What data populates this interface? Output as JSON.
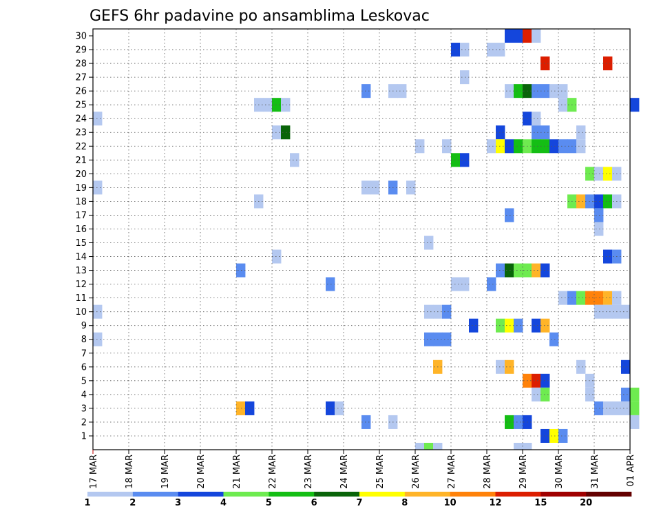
{
  "chart_data": {
    "type": "heatmap",
    "title": "GEFS 6hr padavine po ansamblima Leskovac",
    "x_tick_labels": [
      "17 MAR",
      "18 MAR",
      "19 MAR",
      "20 MAR",
      "21 MAR",
      "22 MAR",
      "23 MAR",
      "24 MAR",
      "25 MAR",
      "26 MAR",
      "27 MAR",
      "28 MAR",
      "29 MAR",
      "30 MAR",
      "31 MAR",
      "01 APR"
    ],
    "y_tick_labels": [
      "1",
      "2",
      "3",
      "4",
      "5",
      "6",
      "7",
      "8",
      "9",
      "10",
      "11",
      "12",
      "13",
      "14",
      "15",
      "16",
      "17",
      "18",
      "19",
      "20",
      "21",
      "22",
      "23",
      "24",
      "25",
      "26",
      "27",
      "28",
      "29",
      "30"
    ],
    "ylim": [
      0,
      30
    ],
    "x_steps_per_day": 4,
    "grid": true,
    "colorbar": {
      "labels": [
        "1",
        "2",
        "3",
        "4",
        "5",
        "6",
        "7",
        "8",
        "10",
        "12",
        "15",
        "20"
      ],
      "colors": [
        "#b4c8f0",
        "#5a8cf0",
        "#1446dc",
        "#6eeb50",
        "#14be14",
        "#096409",
        "#ffff00",
        "#ffb428",
        "#ff820a",
        "#dc1e00",
        "#a00000",
        "#640000"
      ]
    },
    "cells": [
      [
        30,
        46,
        2
      ],
      [
        30,
        47,
        2
      ],
      [
        30,
        48,
        9
      ],
      [
        30,
        49,
        0
      ],
      [
        29,
        40,
        2
      ],
      [
        29,
        41,
        0
      ],
      [
        29,
        44,
        0
      ],
      [
        29,
        45,
        0
      ],
      [
        28,
        50,
        9
      ],
      [
        28,
        57,
        9
      ],
      [
        27,
        41,
        0
      ],
      [
        26,
        30,
        1
      ],
      [
        26,
        33,
        0
      ],
      [
        26,
        34,
        0
      ],
      [
        26,
        46,
        0
      ],
      [
        26,
        47,
        4
      ],
      [
        26,
        48,
        5
      ],
      [
        26,
        49,
        1
      ],
      [
        26,
        50,
        1
      ],
      [
        26,
        51,
        0
      ],
      [
        26,
        52,
        0
      ],
      [
        25,
        18,
        0
      ],
      [
        25,
        19,
        0
      ],
      [
        25,
        20,
        4
      ],
      [
        25,
        21,
        0
      ],
      [
        25,
        52,
        0
      ],
      [
        25,
        53,
        3
      ],
      [
        25,
        60,
        2
      ],
      [
        24,
        0,
        0
      ],
      [
        24,
        48,
        2
      ],
      [
        24,
        49,
        0
      ],
      [
        23,
        20,
        0
      ],
      [
        23,
        21,
        5
      ],
      [
        23,
        45,
        2
      ],
      [
        23,
        49,
        1
      ],
      [
        23,
        50,
        1
      ],
      [
        23,
        54,
        0
      ],
      [
        22,
        36,
        0
      ],
      [
        22,
        39,
        0
      ],
      [
        22,
        44,
        0
      ],
      [
        22,
        45,
        6
      ],
      [
        22,
        46,
        2
      ],
      [
        22,
        47,
        4
      ],
      [
        22,
        48,
        3
      ],
      [
        22,
        49,
        4
      ],
      [
        22,
        50,
        4
      ],
      [
        22,
        51,
        2
      ],
      [
        22,
        52,
        1
      ],
      [
        22,
        53,
        1
      ],
      [
        22,
        54,
        0
      ],
      [
        21,
        22,
        0
      ],
      [
        21,
        40,
        4
      ],
      [
        21,
        41,
        2
      ],
      [
        20,
        55,
        3
      ],
      [
        20,
        56,
        0
      ],
      [
        20,
        57,
        6
      ],
      [
        20,
        58,
        0
      ],
      [
        19,
        0,
        0
      ],
      [
        19,
        30,
        0
      ],
      [
        19,
        31,
        0
      ],
      [
        19,
        33,
        1
      ],
      [
        19,
        35,
        0
      ],
      [
        18,
        18,
        0
      ],
      [
        18,
        53,
        3
      ],
      [
        18,
        54,
        7
      ],
      [
        18,
        55,
        1
      ],
      [
        18,
        56,
        2
      ],
      [
        18,
        57,
        4
      ],
      [
        18,
        58,
        0
      ],
      [
        17,
        46,
        1
      ],
      [
        17,
        56,
        1
      ],
      [
        16,
        56,
        0
      ],
      [
        15,
        37,
        0
      ],
      [
        14,
        20,
        0
      ],
      [
        14,
        57,
        2
      ],
      [
        14,
        58,
        1
      ],
      [
        13,
        16,
        1
      ],
      [
        13,
        45,
        1
      ],
      [
        13,
        46,
        5
      ],
      [
        13,
        47,
        3
      ],
      [
        13,
        48,
        3
      ],
      [
        13,
        49,
        7
      ],
      [
        13,
        50,
        2
      ],
      [
        12,
        26,
        1
      ],
      [
        12,
        40,
        0
      ],
      [
        12,
        41,
        0
      ],
      [
        12,
        44,
        1
      ],
      [
        11,
        52,
        0
      ],
      [
        11,
        53,
        1
      ],
      [
        11,
        54,
        3
      ],
      [
        11,
        55,
        8
      ],
      [
        11,
        56,
        8
      ],
      [
        11,
        57,
        7
      ],
      [
        11,
        58,
        0
      ],
      [
        10,
        0,
        0
      ],
      [
        10,
        37,
        0
      ],
      [
        10,
        38,
        0
      ],
      [
        10,
        39,
        1
      ],
      [
        10,
        56,
        0
      ],
      [
        10,
        57,
        0
      ],
      [
        10,
        58,
        0
      ],
      [
        10,
        59,
        0
      ],
      [
        9,
        42,
        2
      ],
      [
        9,
        45,
        3
      ],
      [
        9,
        46,
        6
      ],
      [
        9,
        47,
        1
      ],
      [
        9,
        49,
        2
      ],
      [
        9,
        50,
        7
      ],
      [
        8,
        0,
        0
      ],
      [
        8,
        37,
        1
      ],
      [
        8,
        38,
        1
      ],
      [
        8,
        39,
        1
      ],
      [
        8,
        51,
        1
      ],
      [
        6,
        38,
        7
      ],
      [
        6,
        45,
        0
      ],
      [
        6,
        46,
        7
      ],
      [
        6,
        54,
        0
      ],
      [
        6,
        59,
        2
      ],
      [
        5,
        48,
        8
      ],
      [
        5,
        49,
        9
      ],
      [
        5,
        50,
        2
      ],
      [
        5,
        55,
        0
      ],
      [
        4,
        49,
        0
      ],
      [
        4,
        50,
        3
      ],
      [
        4,
        55,
        0
      ],
      [
        4,
        59,
        1
      ],
      [
        4,
        60,
        3
      ],
      [
        3,
        16,
        7
      ],
      [
        3,
        17,
        2
      ],
      [
        3,
        26,
        2
      ],
      [
        3,
        27,
        0
      ],
      [
        3,
        56,
        1
      ],
      [
        3,
        57,
        0
      ],
      [
        3,
        58,
        0
      ],
      [
        3,
        59,
        0
      ],
      [
        3,
        60,
        3
      ],
      [
        2,
        30,
        1
      ],
      [
        2,
        33,
        0
      ],
      [
        2,
        46,
        4
      ],
      [
        2,
        47,
        1
      ],
      [
        2,
        48,
        2
      ],
      [
        2,
        60,
        0
      ],
      [
        1,
        50,
        2
      ],
      [
        1,
        51,
        6
      ],
      [
        1,
        52,
        1
      ],
      [
        0,
        36,
        0
      ],
      [
        0,
        37,
        3
      ],
      [
        0,
        38,
        0
      ],
      [
        0,
        47,
        0
      ],
      [
        0,
        48,
        0
      ]
    ]
  }
}
